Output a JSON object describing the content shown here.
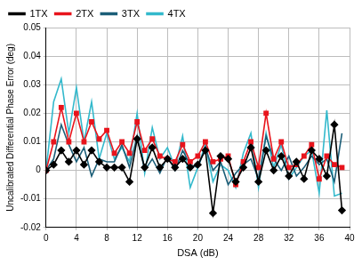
{
  "chart_data": {
    "type": "line",
    "x_label": "DSA (dB)",
    "y_label": "Uncalibrated Differential Phase Error (deg)",
    "x": [
      0,
      1,
      2,
      3,
      4,
      5,
      6,
      7,
      8,
      9,
      10,
      11,
      12,
      13,
      14,
      15,
      16,
      17,
      18,
      19,
      20,
      21,
      22,
      23,
      24,
      25,
      26,
      27,
      28,
      29,
      30,
      31,
      32,
      33,
      34,
      35,
      36,
      37,
      38,
      39
    ],
    "series": [
      {
        "name": "1TX",
        "color": "#000000",
        "marker": "diamond",
        "values": [
          0,
          0.002,
          0.007,
          0.003,
          0.007,
          0.002,
          0.007,
          0.003,
          0.001,
          0.001,
          0.001,
          -0.004,
          0.011,
          0.001,
          0.008,
          0.001,
          0.004,
          0.001,
          0.004,
          0.001,
          0.002,
          0.007,
          -0.015,
          0.005,
          0.004,
          -0.004,
          0.001,
          0.008,
          -0.004,
          0.007,
          0,
          0.005,
          -0.002,
          0.003,
          -0.003,
          0.007,
          0.004,
          -0.002,
          0.016,
          -0.014
        ]
      },
      {
        "name": "2TX",
        "color": "#e8141c",
        "marker": "square",
        "values": [
          0,
          0.01,
          0.022,
          0.01,
          0.02,
          0.01,
          0.017,
          0.011,
          0.014,
          0.006,
          0.01,
          0.006,
          0.017,
          0.007,
          0.011,
          0.005,
          0.004,
          0.003,
          0.009,
          0.003,
          0.005,
          0.01,
          0.003,
          0.004,
          0.005,
          -0.005,
          0.003,
          0.01,
          0.001,
          0.02,
          0.004,
          0.01,
          0.001,
          0.002,
          0.005,
          0.009,
          -0.003,
          0.005,
          0.002,
          0.001
        ]
      },
      {
        "name": "3TX",
        "color": "#1b5e78",
        "marker": "none",
        "values": [
          0,
          0.004,
          0.016,
          0.009,
          0.003,
          0.008,
          -0.002,
          0.004,
          0.003,
          0.003,
          0.009,
          0.001,
          0.012,
          0,
          0.004,
          -0.001,
          0.005,
          0,
          0.007,
          0.002,
          0.001,
          0.008,
          0,
          0.003,
          -0.005,
          -0.001,
          0.002,
          0.004,
          -0.003,
          0.012,
          0.004,
          0,
          0.005,
          -0.002,
          0.001,
          0.005,
          0.002,
          0.004,
          -0.004,
          0.013
        ]
      },
      {
        "name": "4TX",
        "color": "#33b9cc",
        "marker": "none",
        "values": [
          0,
          0.024,
          0.032,
          0.013,
          0.029,
          0.01,
          0.024,
          0.004,
          0.013,
          0.004,
          0.008,
          0.003,
          0.02,
          -0.001,
          0.015,
          0.004,
          0.008,
          0.001,
          0.012,
          -0.006,
          0.001,
          0.009,
          -0.004,
          0.002,
          0,
          -0.006,
          0.006,
          0.013,
          -0.006,
          0.013,
          0.001,
          0.009,
          -0.003,
          0.001,
          0.005,
          0.007,
          -0.008,
          0.021,
          -0.009,
          -0.008
        ]
      }
    ],
    "xlim": [
      0,
      40
    ],
    "xticks": [
      0,
      4,
      8,
      12,
      16,
      20,
      24,
      28,
      32,
      36,
      40
    ],
    "ylim": [
      -0.02,
      0.05
    ],
    "yticks": [
      -0.02,
      -0.01,
      0,
      0.01,
      0.02,
      0.03,
      0.04,
      0.05
    ],
    "grid": true,
    "legend": "top-left"
  }
}
